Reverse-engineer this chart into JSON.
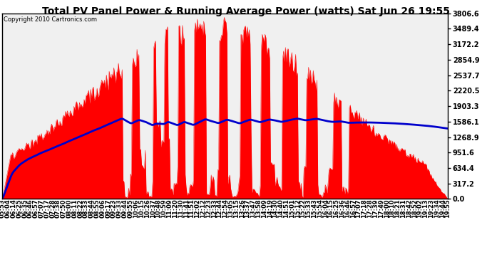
{
  "title": "Total PV Panel Power & Running Average Power (watts) Sat Jun 26 19:55",
  "copyright": "Copyright 2010 Cartronics.com",
  "bg_color": "#ffffff",
  "plot_bg_color": "#f0f0f0",
  "grid_color": "#c0c0c0",
  "fill_color": "#ff0000",
  "line_color": "#0000cc",
  "ymax": 3806.6,
  "ymin": 0.0,
  "ytick_step": 317.2,
  "ytick_labels": [
    "0.0",
    "317.2",
    "634.4",
    "951.6",
    "1268.9",
    "1586.1",
    "1903.3",
    "2220.5",
    "2537.7",
    "2854.9",
    "3172.2",
    "3489.4",
    "3806.6"
  ],
  "x_labels": [
    "05:53",
    "06:04",
    "06:14",
    "06:25",
    "06:35",
    "06:46",
    "06:57",
    "07:07",
    "07:17",
    "07:28",
    "07:38",
    "07:50",
    "08:00",
    "08:11",
    "08:22",
    "08:33",
    "08:44",
    "08:55",
    "09:06",
    "09:17",
    "09:23",
    "09:33",
    "09:44",
    "09:55",
    "10:06",
    "10:15",
    "10:26",
    "10:37",
    "10:48",
    "10:59",
    "11:09",
    "11:20",
    "11:30",
    "11:41",
    "11:51",
    "12:02",
    "12:12",
    "12:23",
    "12:33",
    "12:44",
    "12:54",
    "13:05",
    "13:15",
    "13:26",
    "13:37",
    "13:47",
    "13:58",
    "14:09",
    "14:19",
    "14:30",
    "14:40",
    "14:51",
    "15:01",
    "15:12",
    "15:22",
    "15:33",
    "15:43",
    "15:54",
    "16:04",
    "16:15",
    "16:25",
    "16:36",
    "16:46",
    "16:57",
    "17:07",
    "17:18",
    "17:28",
    "17:39",
    "17:49",
    "18:00",
    "18:10",
    "18:21",
    "18:31",
    "18:42",
    "18:52",
    "19:02",
    "19:13",
    "19:23",
    "19:34",
    "19:44",
    "19:55"
  ],
  "title_fontsize": 10,
  "copyright_fontsize": 6,
  "tick_fontsize": 6,
  "ytick_fontsize": 7,
  "line_width": 2.0
}
